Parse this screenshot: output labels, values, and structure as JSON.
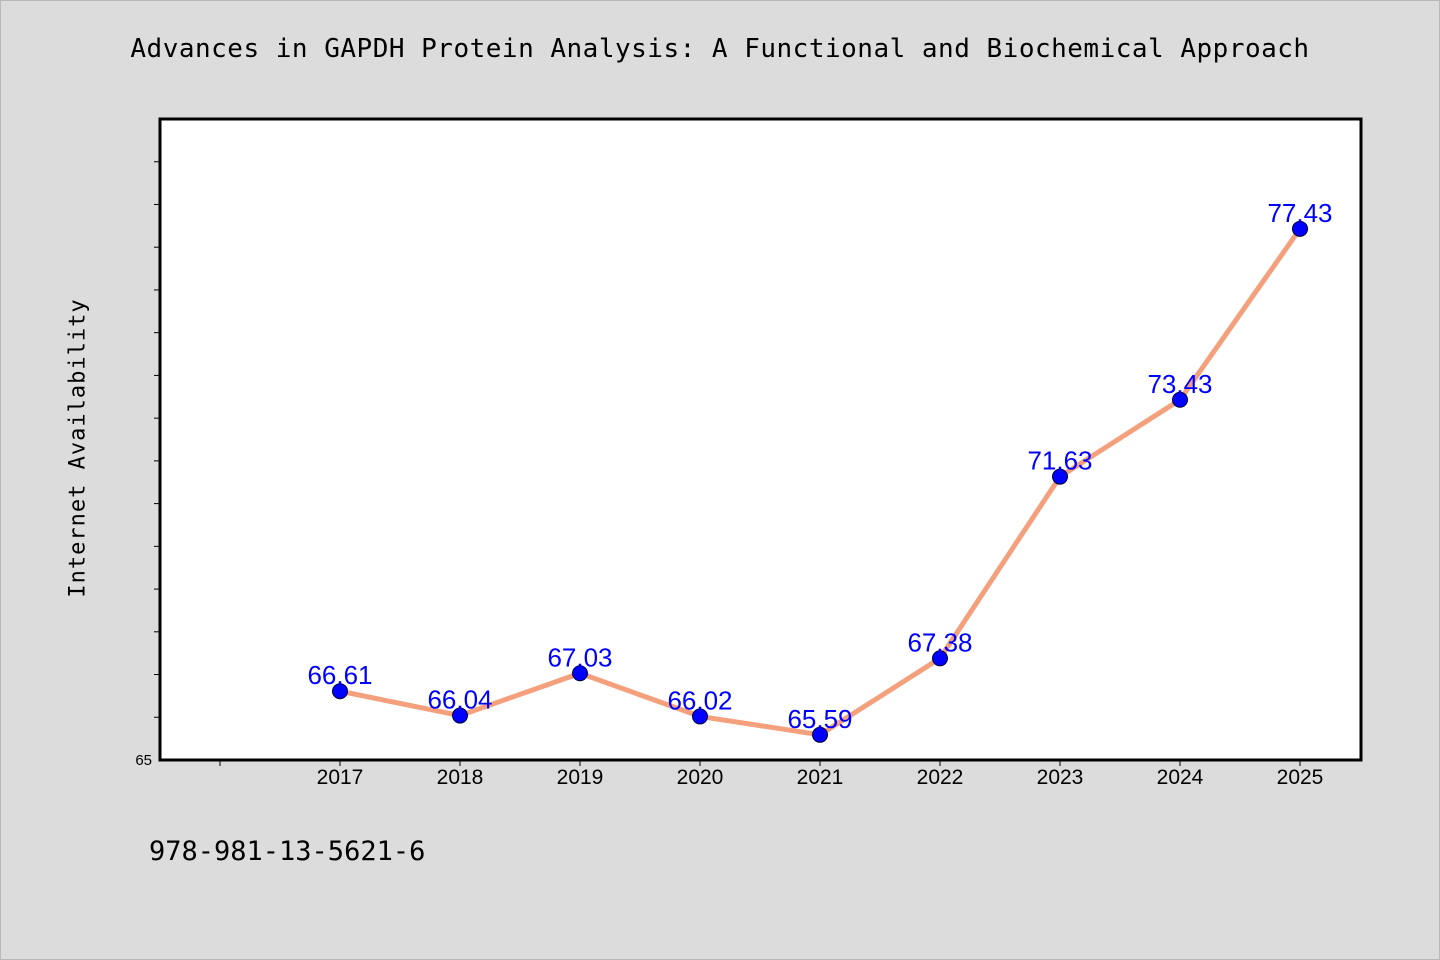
{
  "chart_data": {
    "type": "line",
    "title": "Advances in GAPDH Protein Analysis: A Functional and Biochemical Approach",
    "xlabel": "",
    "ylabel": "Internet Availability",
    "categories": [
      "2017",
      "2018",
      "2019",
      "2020",
      "2021",
      "2022",
      "2023",
      "2024",
      "2025"
    ],
    "series": [
      {
        "values": [
          66.61,
          66.04,
          67.03,
          66.02,
          65.59,
          67.38,
          71.63,
          73.43,
          77.43
        ],
        "labels": [
          "66.61",
          "66.04",
          "67.03",
          "66.02",
          "65.59",
          "67.38",
          "71.63",
          "73.43",
          "77.43"
        ]
      }
    ],
    "ylim": [
      65,
      80
    ],
    "y_tick_labels": [
      "65"
    ],
    "grid": false,
    "colors": {
      "line": "#f4a07c",
      "marker": "#0000ff",
      "data_label": "#0000ff",
      "plot_background": "#ffffff",
      "page_background": "#dcdcdc"
    }
  },
  "footer": {
    "isbn": "978-981-13-5621-6"
  }
}
